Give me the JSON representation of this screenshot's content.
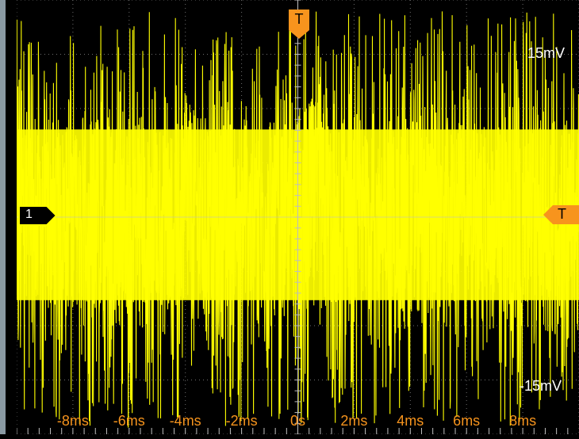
{
  "markers": {
    "channel_label": "1",
    "trigger_top_label": "T",
    "trigger_level_label": "T"
  },
  "scale": {
    "top_voltage": "15mV",
    "bottom_voltage": "-15mV"
  },
  "time_axis": {
    "labels": [
      "-8ms",
      "-6ms",
      "-4ms",
      "-2ms",
      "0s",
      "2ms",
      "4ms",
      "6ms",
      "8ms"
    ]
  },
  "colors": {
    "trace": "#ffff00",
    "background": "#000000",
    "grid": "#6e6e6e",
    "trigger_marker": "#f7941d",
    "axis_labels": "#f7941d",
    "channel_marker_fill": "#ffff00"
  },
  "chart_data": {
    "type": "line",
    "title": "",
    "xlabel": "",
    "ylabel": "",
    "x_unit": "ms",
    "y_unit": "mV",
    "xlim": [
      -10,
      10
    ],
    "ylim": [
      -20,
      20
    ],
    "x_ticks": [
      -8,
      -6,
      -4,
      -2,
      0,
      2,
      4,
      6,
      8
    ],
    "y_ticks": [
      15,
      -15
    ],
    "grid": true,
    "series": [
      {
        "name": "",
        "description_values": "dense noise waveform",
        "envelope_upper_mV": 15.5,
        "envelope_lower_mV": -16.5,
        "core_band_upper_mV": 9.5,
        "core_band_lower_mV": -9.0,
        "peak_mV": 19.0,
        "trough_mV": -19.5
      }
    ]
  }
}
